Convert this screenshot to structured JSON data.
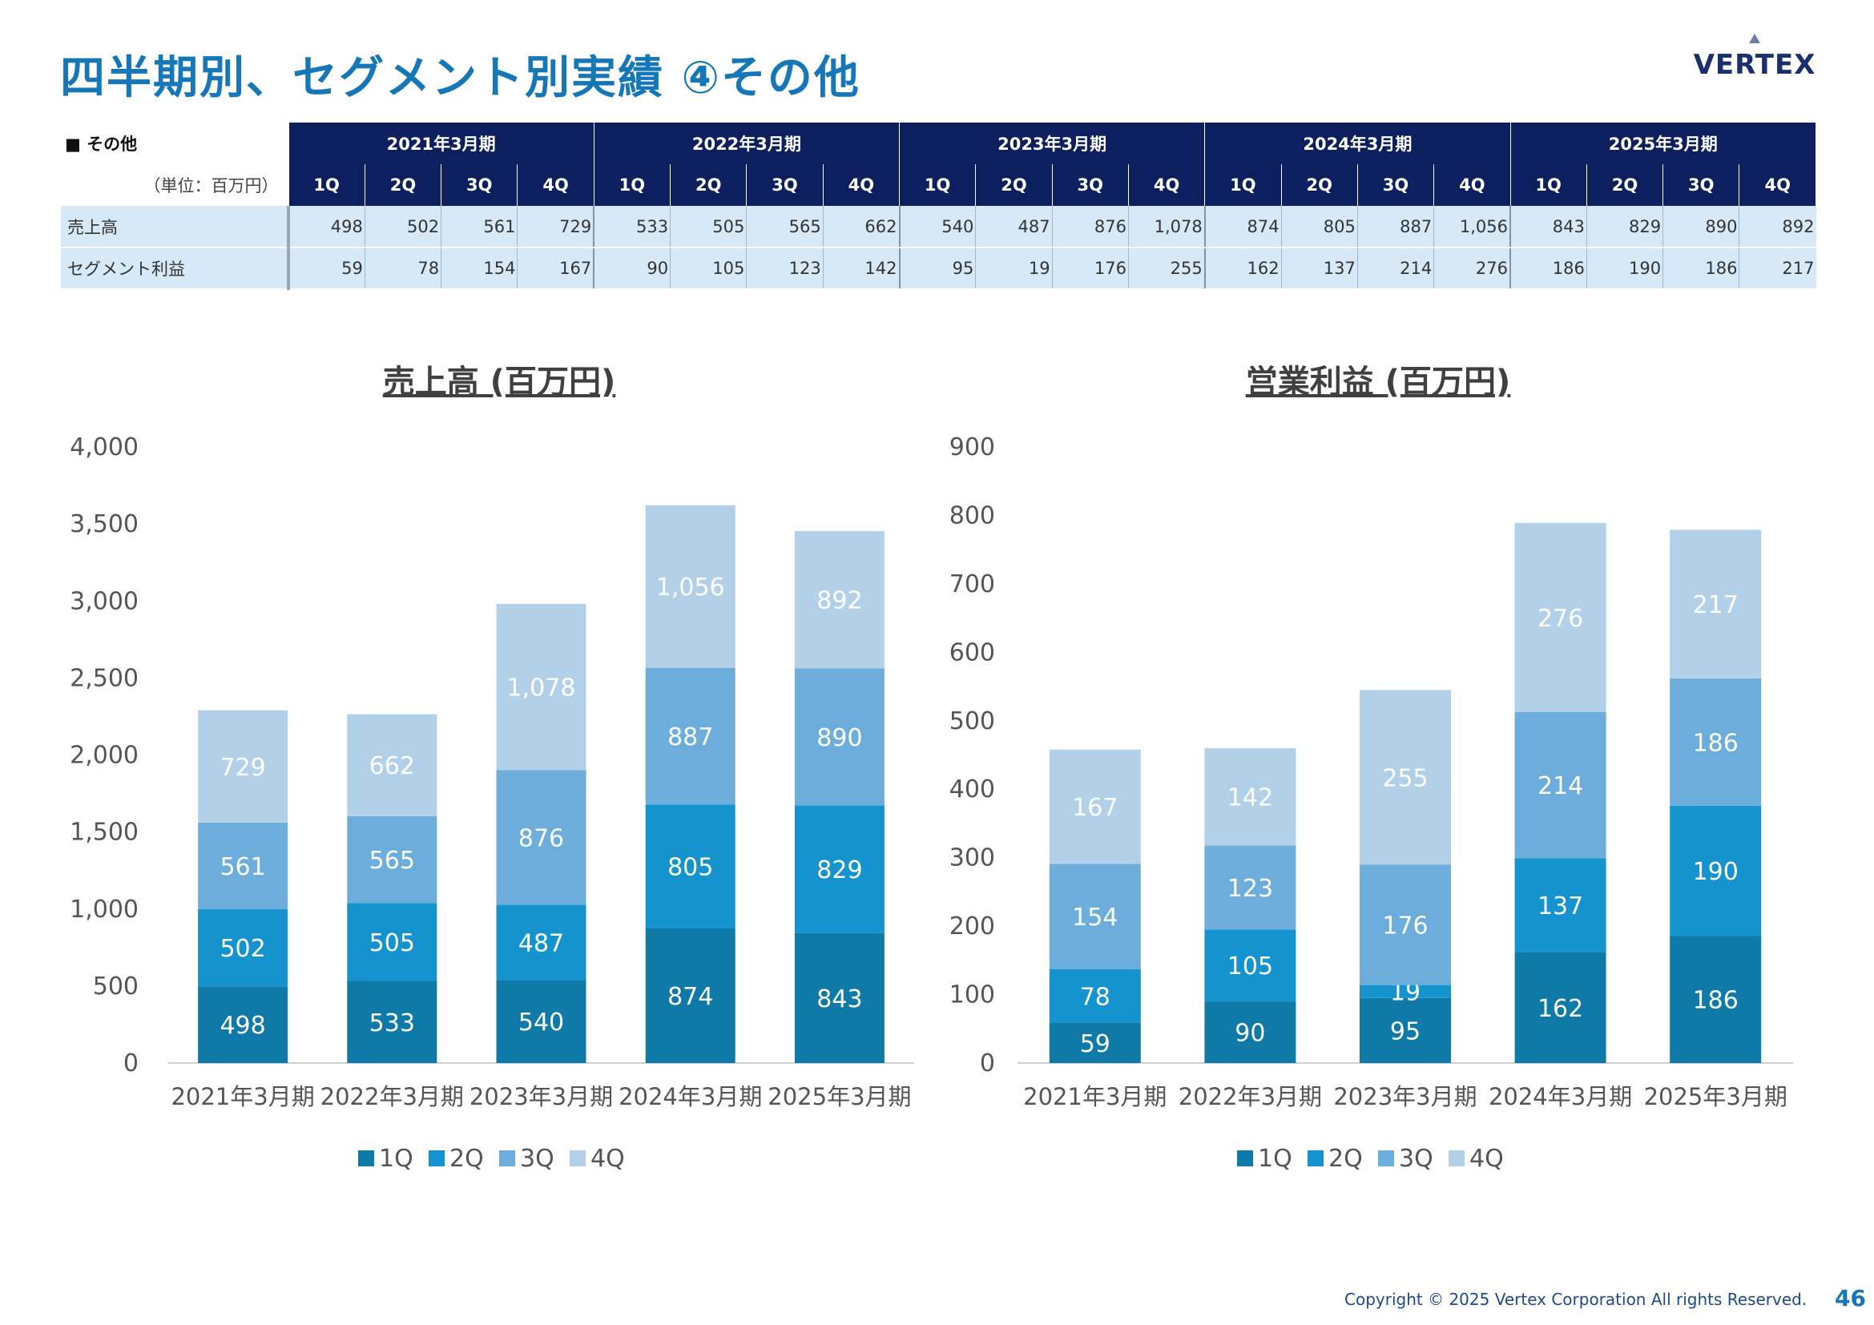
{
  "title": "四半期別、セグメント別実績 ④その他",
  "logo_text": "VERTEX",
  "table": {
    "section_label": "■ その他",
    "unit_label": "（単位：百万円）",
    "years": [
      "2021年3月期",
      "2022年3月期",
      "2023年3月期",
      "2024年3月期",
      "2025年3月期"
    ],
    "quarters": [
      "1Q",
      "2Q",
      "3Q",
      "4Q"
    ],
    "rows": [
      {
        "label": "売上高",
        "values": [
          "498",
          "502",
          "561",
          "729",
          "533",
          "505",
          "565",
          "662",
          "540",
          "487",
          "876",
          "1,078",
          "874",
          "805",
          "887",
          "1,056",
          "843",
          "829",
          "890",
          "892"
        ]
      },
      {
        "label": "セグメント利益",
        "values": [
          "59",
          "78",
          "154",
          "167",
          "90",
          "105",
          "123",
          "142",
          "95",
          "19",
          "176",
          "255",
          "162",
          "137",
          "214",
          "276",
          "186",
          "190",
          "186",
          "217"
        ]
      }
    ]
  },
  "colors": {
    "title": "#1577b8",
    "header_bg": "#0d1f5e",
    "cell_bg": "#d7e9f7",
    "q1": "#0f7aa8",
    "q2": "#1493cf",
    "q3": "#6caddc",
    "q4": "#b3d0e9"
  },
  "chart_data": [
    {
      "type": "bar",
      "stacked": true,
      "title": "売上高 (百万円)",
      "categories": [
        "2021年3月期",
        "2022年3月期",
        "2023年3月期",
        "2024年3月期",
        "2025年3月期"
      ],
      "series": [
        {
          "name": "1Q",
          "values": [
            498,
            533,
            540,
            874,
            843
          ],
          "labels": [
            "498",
            "533",
            "540",
            "874",
            "843"
          ]
        },
        {
          "name": "2Q",
          "values": [
            502,
            505,
            487,
            805,
            829
          ],
          "labels": [
            "502",
            "505",
            "487",
            "805",
            "829"
          ]
        },
        {
          "name": "3Q",
          "values": [
            561,
            565,
            876,
            887,
            890
          ],
          "labels": [
            "561",
            "565",
            "876",
            "887",
            "890"
          ]
        },
        {
          "name": "4Q",
          "values": [
            729,
            662,
            1078,
            1056,
            892
          ],
          "labels": [
            "729",
            "662",
            "1,078",
            "1,056",
            "892"
          ]
        }
      ],
      "ylim": [
        0,
        4000
      ],
      "yticks": [
        "0",
        "500",
        "1,000",
        "1,500",
        "2,000",
        "2,500",
        "3,000",
        "3,500",
        "4,000"
      ],
      "grid": false,
      "legend": "bottom"
    },
    {
      "type": "bar",
      "stacked": true,
      "title": "営業利益 (百万円)",
      "categories": [
        "2021年3月期",
        "2022年3月期",
        "2023年3月期",
        "2024年3月期",
        "2025年3月期"
      ],
      "series": [
        {
          "name": "1Q",
          "values": [
            59,
            90,
            95,
            162,
            186
          ],
          "labels": [
            "59",
            "90",
            "95",
            "162",
            "186"
          ]
        },
        {
          "name": "2Q",
          "values": [
            78,
            105,
            19,
            137,
            190
          ],
          "labels": [
            "78",
            "105",
            "19",
            "137",
            "190"
          ]
        },
        {
          "name": "3Q",
          "values": [
            154,
            123,
            176,
            214,
            186
          ],
          "labels": [
            "154",
            "123",
            "176",
            "214",
            "186"
          ]
        },
        {
          "name": "4Q",
          "values": [
            167,
            142,
            255,
            276,
            217
          ],
          "labels": [
            "167",
            "142",
            "255",
            "276",
            "217"
          ]
        }
      ],
      "ylim": [
        0,
        900
      ],
      "yticks": [
        "0",
        "100",
        "200",
        "300",
        "400",
        "500",
        "600",
        "700",
        "800",
        "900"
      ],
      "grid": false,
      "legend": "bottom"
    }
  ],
  "footer": {
    "copyright": "Copyright © 2025 Vertex Corporation All rights Reserved.",
    "page_number": "46"
  }
}
